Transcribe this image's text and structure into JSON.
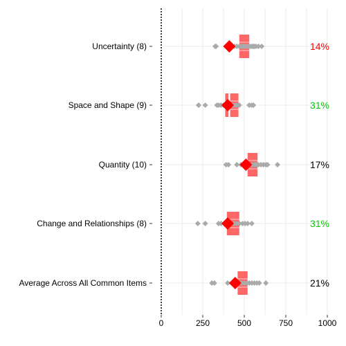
{
  "chart_data": {
    "type": "scatter",
    "title": "",
    "xlabel": "",
    "ylabel": "",
    "xlim": [
      0,
      1000
    ],
    "x_ticks": [
      0,
      250,
      500,
      750,
      1000
    ],
    "grid": true,
    "categories": [
      {
        "label": "Uncertainty (8)",
        "percent": "14%",
        "percent_color": "#ff0000",
        "points": [
          325,
          330,
          410,
          440,
          455,
          470,
          480,
          490,
          500,
          510,
          520,
          530,
          540,
          550,
          555,
          560,
          570,
          585,
          605
        ],
        "boxes": [
          {
            "center": 500,
            "low": 470,
            "high": 530
          }
        ],
        "highlight": 410
      },
      {
        "label": "Space and Shape (9)",
        "percent": "31%",
        "percent_color": "#00cc00",
        "points": [
          225,
          265,
          335,
          345,
          360,
          375,
          385,
          400,
          415,
          430,
          445,
          455,
          470,
          530,
          545,
          555
        ],
        "boxes": [
          {
            "center": 395,
            "low": 385,
            "high": 405
          },
          {
            "center": 440,
            "low": 415,
            "high": 465
          }
        ],
        "highlight": 400
      },
      {
        "label": "Quantity (10)",
        "percent": "17%",
        "percent_color": "#000000",
        "points": [
          390,
          405,
          455,
          480,
          500,
          520,
          530,
          545,
          555,
          565,
          575,
          585,
          600,
          615,
          630,
          640,
          700
        ],
        "boxes": [
          {
            "center": 550,
            "low": 520,
            "high": 580
          }
        ],
        "highlight": 510
      },
      {
        "label": "Change and Relationships (8)",
        "percent": "31%",
        "percent_color": "#00cc00",
        "points": [
          220,
          265,
          345,
          360,
          380,
          400,
          420,
          440,
          455,
          470,
          490,
          505,
          520,
          545
        ],
        "boxes": [
          {
            "center": 415,
            "low": 395,
            "high": 435
          },
          {
            "center": 450,
            "low": 435,
            "high": 470
          }
        ],
        "highlight": 400
      },
      {
        "label": "Average Across All Common Items",
        "percent": "21%",
        "percent_color": "#000000",
        "points": [
          305,
          320,
          400,
          430,
          445,
          470,
          485,
          500,
          515,
          530,
          545,
          560,
          575,
          590,
          630
        ],
        "boxes": [
          {
            "center": 490,
            "low": 460,
            "high": 520
          }
        ],
        "highlight": 445
      }
    ]
  },
  "colors": {
    "point": "#aaaaaa",
    "box": "#ff6666",
    "highlight": "#ff0000",
    "grid": "#ebebeb",
    "axis": "#000000"
  }
}
